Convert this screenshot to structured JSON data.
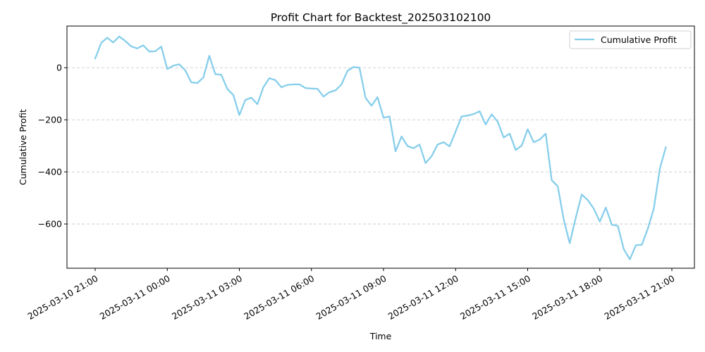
{
  "chart_data": {
    "type": "line",
    "title": "Profit Chart for Backtest_202503102100",
    "xlabel": "Time",
    "ylabel": "Cumulative Profit",
    "x_ticks": [
      "2025-03-10 21:00",
      "2025-03-11 00:00",
      "2025-03-11 03:00",
      "2025-03-11 06:00",
      "2025-03-11 09:00",
      "2025-03-11 12:00",
      "2025-03-11 15:00",
      "2025-03-11 18:00",
      "2025-03-11 21:00"
    ],
    "y_ticks": [
      -600,
      -400,
      -200,
      0
    ],
    "ylim": [
      -770,
      160
    ],
    "grid": "horizontal dashed",
    "legend_position": "top-right",
    "series": [
      {
        "name": "Cumulative Profit",
        "color": "#87CEEB",
        "x_start": "2025-03-10 21:00",
        "x_step_minutes": 15,
        "values": [
          35,
          95,
          115,
          97,
          120,
          103,
          82,
          74,
          86,
          62,
          63,
          81,
          -5,
          8,
          13,
          -10,
          -56,
          -59,
          -38,
          46,
          -25,
          -27,
          -82,
          -105,
          -182,
          -124,
          -115,
          -140,
          -75,
          -40,
          -48,
          -75,
          -66,
          -64,
          -64,
          -78,
          -80,
          -81,
          -111,
          -94,
          -87,
          -64,
          -12,
          3,
          0,
          -115,
          -146,
          -113,
          -192,
          -187,
          -321,
          -264,
          -301,
          -309,
          -295,
          -366,
          -340,
          -295,
          -286,
          -302,
          -245,
          -187,
          -184,
          -178,
          -167,
          -218,
          -179,
          -207,
          -268,
          -253,
          -316,
          -299,
          -236,
          -286,
          -276,
          -253,
          -432,
          -455,
          -583,
          -674,
          -576,
          -487,
          -508,
          -541,
          -591,
          -537,
          -603,
          -607,
          -697,
          -736,
          -682,
          -680,
          -618,
          -541,
          -387,
          -305
        ]
      }
    ]
  }
}
